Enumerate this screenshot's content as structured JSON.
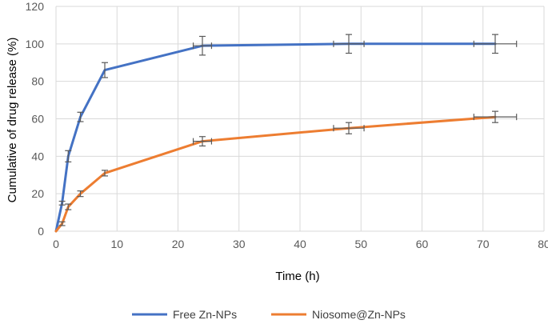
{
  "chart_data": {
    "type": "line",
    "xlabel": "Time (h)",
    "ylabel": "Cumulative of drug release (%)",
    "xlim": [
      0,
      80
    ],
    "ylim": [
      0,
      120
    ],
    "xticks": [
      0,
      10,
      20,
      30,
      40,
      50,
      60,
      70,
      80
    ],
    "yticks": [
      0,
      20,
      40,
      60,
      80,
      100,
      120
    ],
    "grid": true,
    "legend": "bottom",
    "series": [
      {
        "name": "Free Zn-NPs",
        "color": "#4472c4",
        "x": [
          0,
          1,
          2,
          4,
          8,
          24,
          48,
          72
        ],
        "y": [
          0,
          15,
          40,
          61,
          86,
          99,
          100,
          100
        ],
        "err_y": [
          0,
          1,
          3,
          2.5,
          4,
          5,
          5,
          5
        ],
        "err_x": [
          0,
          0,
          0,
          0,
          0,
          1.5,
          2.5,
          3.5
        ]
      },
      {
        "name": "Niosome@Zn-NPs",
        "color": "#ed7d31",
        "x": [
          0,
          1,
          2,
          4,
          8,
          24,
          48,
          72
        ],
        "y": [
          0,
          4,
          13,
          20,
          31,
          48,
          55,
          61
        ],
        "err_y": [
          0,
          1,
          1.5,
          1.5,
          1.5,
          2.5,
          3,
          3
        ],
        "err_x": [
          0,
          0,
          0,
          0,
          0,
          1.5,
          2.5,
          3.5
        ]
      }
    ]
  }
}
